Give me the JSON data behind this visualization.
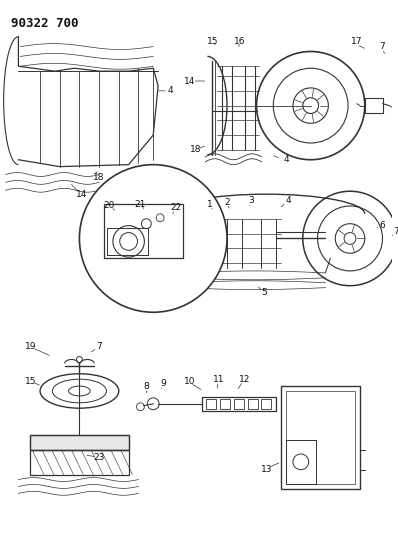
{
  "title": "90322 700",
  "bg_color": "#ffffff",
  "title_fontsize": 9,
  "fig_width": 3.98,
  "fig_height": 5.33,
  "dpi": 100,
  "line_color": "#333333",
  "label_fontsize": 6.5
}
